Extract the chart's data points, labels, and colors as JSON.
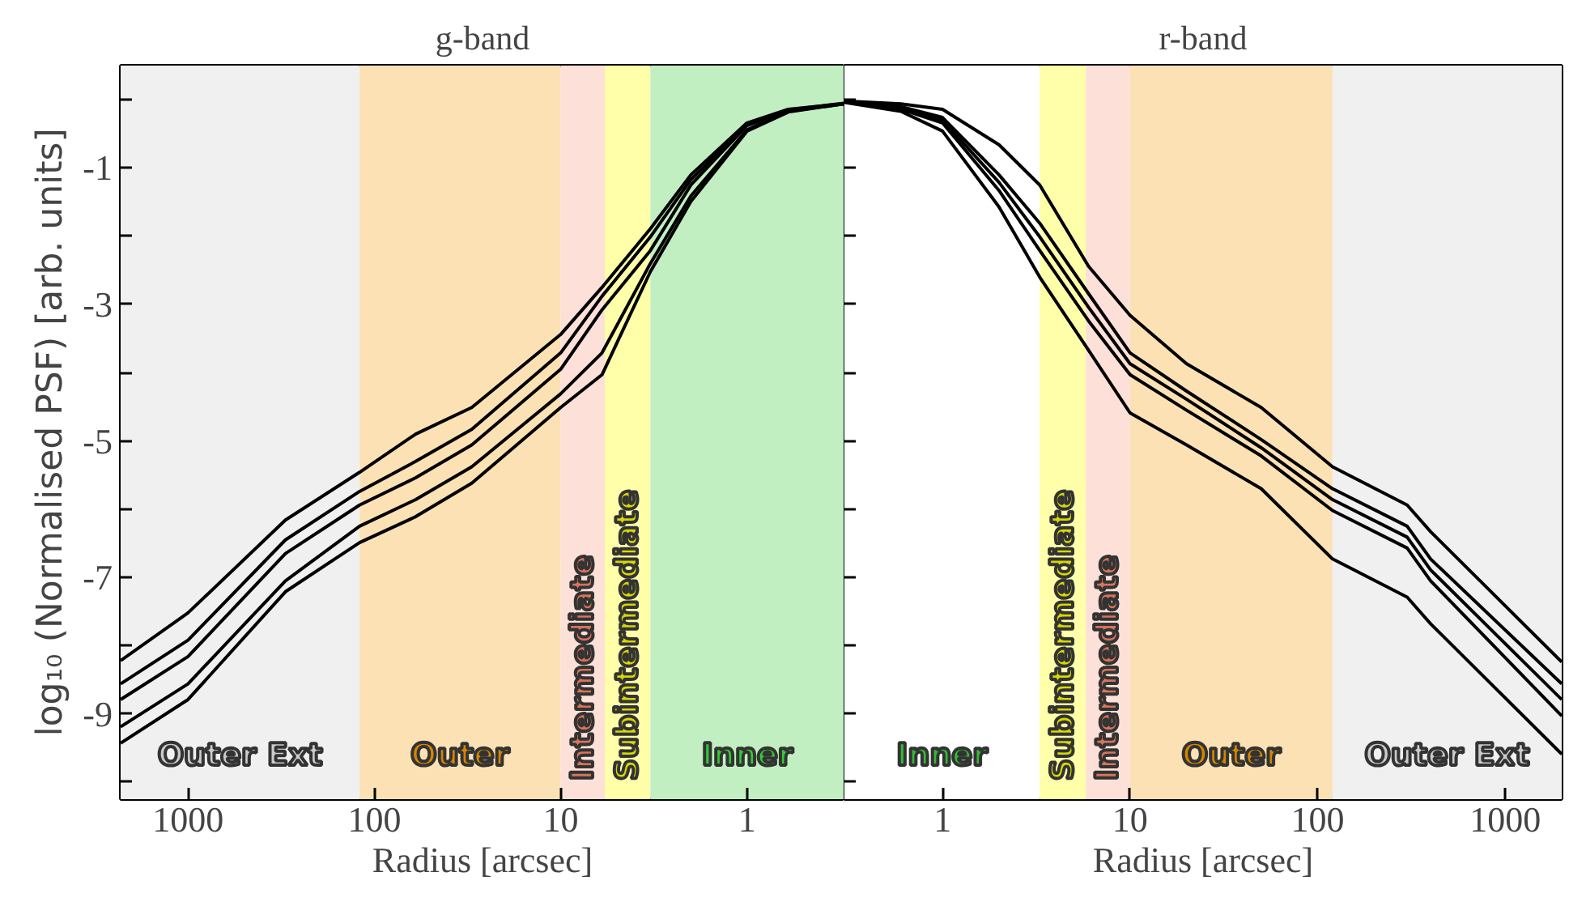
{
  "chart_data": [
    {
      "type": "line",
      "title": "g-band",
      "xlabel": "Radius [arcsec]",
      "ylabel": "log₁₀ (Normalised PSF) [arb. units]",
      "log": "x",
      "xlim": [
        2300,
        0.3
      ],
      "ylim": [
        -10.25,
        0.5
      ],
      "xticks": [
        1000,
        100,
        10,
        1
      ],
      "yticks": [
        {
          "value": 0,
          "label": null
        },
        -1,
        {
          "value": -2,
          "label": null
        },
        -3,
        {
          "value": -4,
          "label": null
        },
        -5,
        {
          "value": -6,
          "label": null
        },
        -7,
        {
          "value": -8,
          "label": null
        },
        -9,
        {
          "value": -10,
          "label": null
        }
      ],
      "bands": [
        {
          "axis": "x",
          "from": 2300,
          "to": 120,
          "label": "Outer Ext",
          "color": "#f0f0f0"
        },
        {
          "axis": "x",
          "from": 120,
          "to": 10,
          "label": "Outer",
          "color": "#fce1b4"
        },
        {
          "axis": "x",
          "from": 10,
          "to": 5.8,
          "label": "Intermediate",
          "color": "#fde0d8"
        },
        {
          "axis": "x",
          "from": 5.8,
          "to": 3.3,
          "label": "Subintermediate",
          "color": "#ffffaa"
        },
        {
          "axis": "x",
          "from": 3.3,
          "to": 0.3,
          "label": "Inner",
          "color": "#c2efc2"
        }
      ],
      "x": [
        2300,
        1000,
        300,
        120,
        60,
        30,
        10,
        6,
        3.3,
        2,
        1,
        0.6,
        0.3
      ],
      "series": [
        {
          "color": "#000000",
          "values": [
            -8.22,
            -7.52,
            -6.16,
            -5.46,
            -4.9,
            -4.51,
            -3.44,
            -2.75,
            -1.89,
            -1.1,
            -0.34,
            -0.14,
            -0.06
          ]
        },
        {
          "color": "#000000",
          "values": [
            -8.56,
            -7.92,
            -6.45,
            -5.74,
            -5.3,
            -4.83,
            -3.71,
            -2.88,
            -2.01,
            -1.17,
            -0.37,
            -0.15,
            -0.05
          ]
        },
        {
          "color": "#000000",
          "values": [
            -8.79,
            -8.16,
            -6.65,
            -5.94,
            -5.54,
            -5.06,
            -3.95,
            -3.08,
            -2.21,
            -1.25,
            -0.38,
            -0.16,
            -0.06
          ]
        },
        {
          "color": "#000000",
          "values": [
            -9.19,
            -8.56,
            -7.05,
            -6.25,
            -5.86,
            -5.38,
            -4.31,
            -3.71,
            -2.4,
            -1.41,
            -0.44,
            -0.17,
            -0.06
          ]
        },
        {
          "color": "#000000",
          "values": [
            -9.43,
            -8.79,
            -7.21,
            -6.49,
            -6.11,
            -5.62,
            -4.51,
            -4.03,
            -2.52,
            -1.49,
            -0.46,
            -0.18,
            -0.06
          ]
        }
      ]
    },
    {
      "type": "line",
      "title": "r-band",
      "xlabel": "Radius [arcsec]",
      "log": "x",
      "xlim": [
        0.3,
        2000
      ],
      "ylim": [
        -10.25,
        0.5
      ],
      "xticks": [
        1,
        10,
        100,
        1000
      ],
      "tick_labels": "x",
      "yticks": [
        0,
        -1,
        -2,
        -3,
        -4,
        -5,
        -6,
        -7,
        -8,
        -9,
        -10
      ],
      "bands": [
        {
          "axis": "x",
          "from": 0.3,
          "to": 3.3,
          "label": "Inner",
          "color": "#ffffff"
        },
        {
          "axis": "x",
          "from": 3.3,
          "to": 5.8,
          "label": "Subintermediate",
          "color": "#ffffaa"
        },
        {
          "axis": "x",
          "from": 5.8,
          "to": 10,
          "label": "Intermediate",
          "color": "#fde0d8"
        },
        {
          "axis": "x",
          "from": 10,
          "to": 120,
          "label": "Outer",
          "color": "#fce1b4"
        },
        {
          "axis": "x",
          "from": 120,
          "to": 2000,
          "label": "Outer Ext",
          "color": "#f0f0f0"
        }
      ],
      "x": [
        0.3,
        0.6,
        1,
        2,
        3.3,
        6,
        10,
        20,
        50,
        120,
        300,
        400,
        2000
      ],
      "series": [
        {
          "color": "#000000",
          "values": [
            -0.02,
            -0.06,
            -0.14,
            -0.66,
            -1.25,
            -2.44,
            -3.16,
            -3.87,
            -4.51,
            -5.38,
            -5.94,
            -6.33,
            -8.24
          ]
        },
        {
          "color": "#000000",
          "values": [
            -0.02,
            -0.1,
            -0.26,
            -1.1,
            -1.81,
            -2.84,
            -3.71,
            -4.27,
            -4.98,
            -5.7,
            -6.25,
            -6.73,
            -8.56
          ]
        },
        {
          "color": "#000000",
          "values": [
            -0.02,
            -0.12,
            -0.3,
            -1.21,
            -2.01,
            -3.04,
            -3.87,
            -4.39,
            -5.1,
            -5.86,
            -6.41,
            -6.89,
            -8.79
          ]
        },
        {
          "color": "#000000",
          "values": [
            -0.03,
            -0.14,
            -0.34,
            -1.33,
            -2.21,
            -3.24,
            -4.03,
            -4.55,
            -5.22,
            -6.02,
            -6.57,
            -7.05,
            -9.03
          ]
        },
        {
          "color": "#000000",
          "values": [
            -0.04,
            -0.17,
            -0.46,
            -1.57,
            -2.6,
            -3.67,
            -4.59,
            -5.06,
            -5.7,
            -6.73,
            -7.29,
            -7.68,
            -9.59
          ]
        }
      ]
    }
  ]
}
